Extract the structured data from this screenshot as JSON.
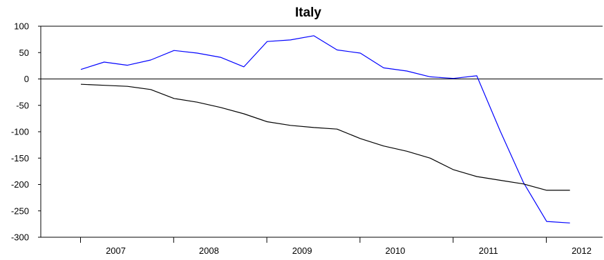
{
  "chart_data": {
    "type": "line",
    "title": "Italy",
    "xlabel": "",
    "ylabel": "",
    "ylim": [
      -300,
      100
    ],
    "yticks": [
      100,
      50,
      0,
      -50,
      -100,
      -150,
      -200,
      -250,
      -300
    ],
    "year_labels": [
      "2007",
      "2008",
      "2009",
      "2010",
      "2011",
      "2012"
    ],
    "year_start_quarter_index": [
      1,
      5,
      9,
      13,
      17,
      21
    ],
    "x_quarters": [
      "2007Q1",
      "2007Q2",
      "2007Q3",
      "2007Q4",
      "2008Q1",
      "2008Q2",
      "2008Q3",
      "2008Q4",
      "2009Q1",
      "2009Q2",
      "2009Q3",
      "2009Q4",
      "2010Q1",
      "2010Q2",
      "2010Q3",
      "2010Q4",
      "2011Q1",
      "2011Q2",
      "2011Q3",
      "2011Q4",
      "2012Q1",
      "2012Q2"
    ],
    "grid": false,
    "zero_line": true,
    "series": [
      {
        "color": "#0000ff",
        "values": [
          18,
          32,
          26,
          36,
          54,
          49,
          41,
          23,
          71,
          74,
          82,
          55,
          49,
          21,
          15,
          4,
          1,
          6,
          -98,
          -196,
          -270,
          -273
        ]
      },
      {
        "color": "#000000",
        "values": [
          -10,
          -12,
          -14,
          -20,
          -37,
          -44,
          -54,
          -66,
          -81,
          -88,
          -92,
          -95,
          -113,
          -127,
          -137,
          -150,
          -172,
          -185,
          -192,
          -199,
          -211,
          -211
        ]
      }
    ]
  }
}
